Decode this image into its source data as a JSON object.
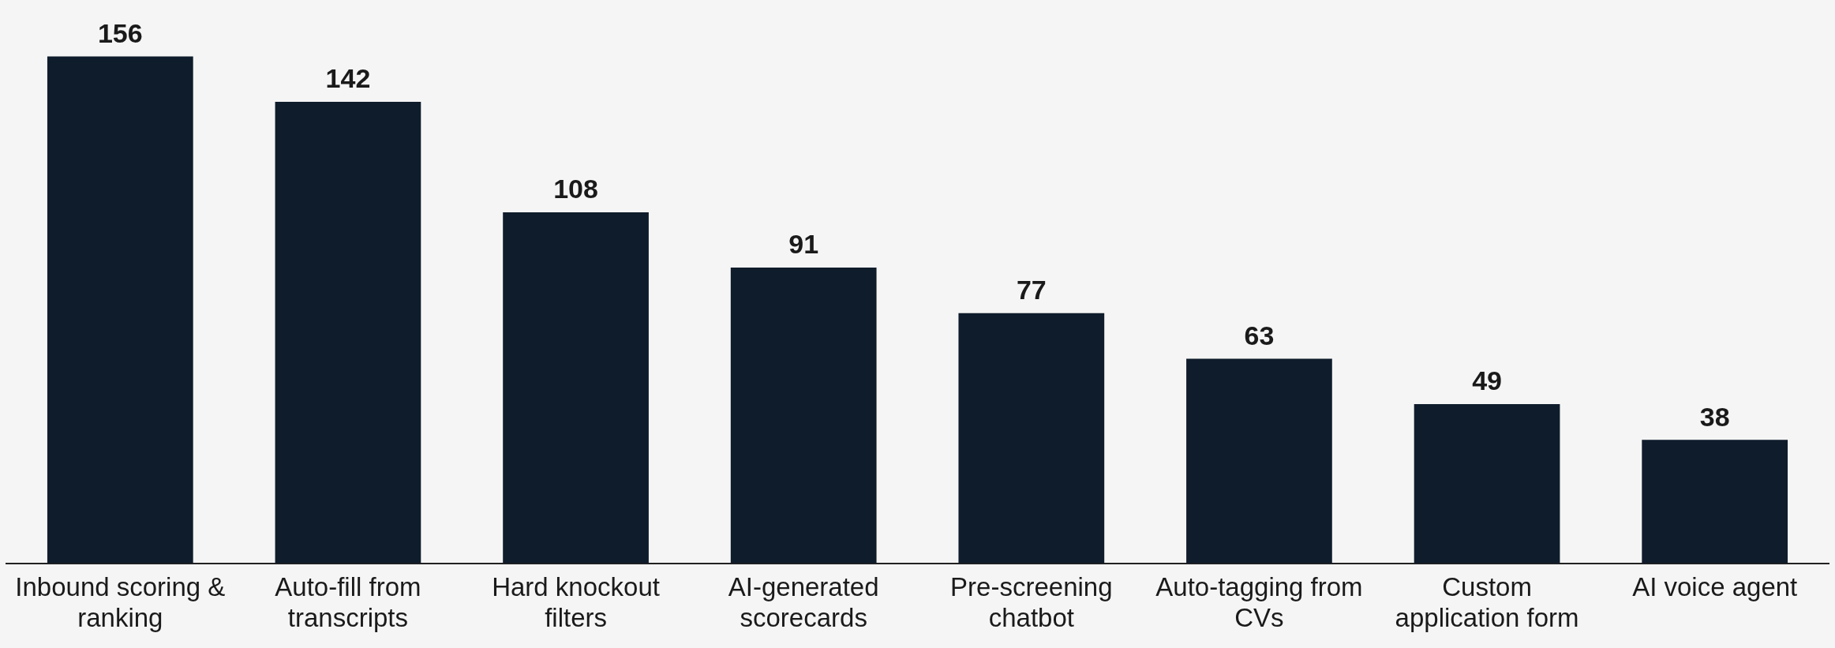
{
  "chart_data": {
    "type": "bar",
    "categories": [
      "Inbound scoring & ranking",
      "Auto-fill from transcripts",
      "Hard knockout filters",
      "AI-generated scorecards",
      "Pre-screening chatbot",
      "Auto-tagging from CVs",
      "Custom application form",
      "AI voice agent"
    ],
    "values": [
      156,
      142,
      108,
      91,
      77,
      63,
      49,
      38
    ],
    "color": "#0f1c2b",
    "data_labels": true,
    "grid": false,
    "legend": false
  }
}
